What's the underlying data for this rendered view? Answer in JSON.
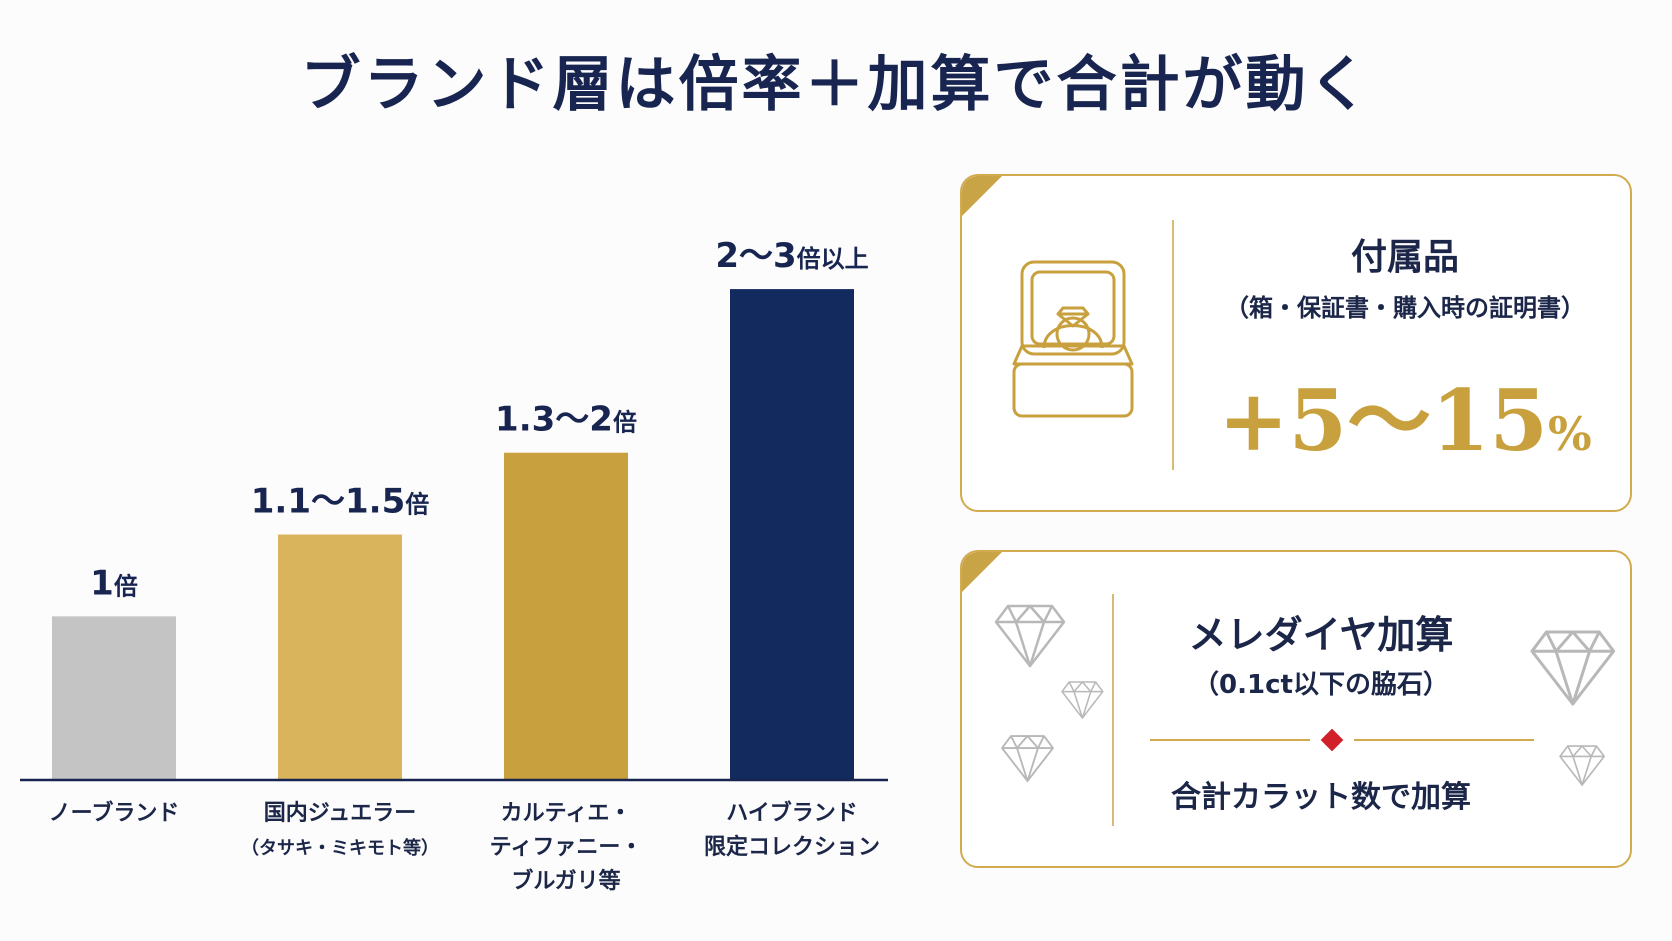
{
  "title": "ブランド層は倍率＋加算で合計が動く",
  "chart_data": {
    "type": "bar",
    "categories": [
      "ノーブランド",
      "国内ジュエラー",
      "カルティエ・ティファニー・ブルガリ等",
      "ハイブランド限定コレクション"
    ],
    "category_lines": [
      [
        "ノーブランド"
      ],
      [
        "国内ジュエラー"
      ],
      [
        "カルティエ・",
        "ティファニー・",
        "ブルガリ等"
      ],
      [
        "ハイブランド",
        "限定コレクション"
      ]
    ],
    "category_subs": [
      "",
      "（タサキ・ミキモト等）",
      "",
      ""
    ],
    "values": [
      1,
      1.5,
      2,
      3
    ],
    "value_labels": [
      {
        "num": "1",
        "unit": "倍"
      },
      {
        "num": "1.1〜1.5",
        "unit": "倍"
      },
      {
        "num": "1.3〜2",
        "unit": "倍"
      },
      {
        "num": "2〜3",
        "unit": "倍以上"
      }
    ],
    "colors": [
      "#c4c4c4",
      "#d9b45c",
      "#c9a03e",
      "#132a5e"
    ],
    "ylim": [
      0,
      3.3
    ],
    "xlabel": "",
    "ylabel": ""
  },
  "card1": {
    "title": "付属品",
    "subtitle": "（箱・保証書・購入時の証明書）",
    "value_main": "+5〜15",
    "value_unit": "%",
    "icon": "ring-box-icon"
  },
  "card2": {
    "title": "メレダイヤ加算",
    "subtitle": "（0.1ct以下の脇石）",
    "note": "合計カラット数で加算",
    "icon": "diamond-icon"
  },
  "colors": {
    "navy": "#172550",
    "gold": "#c9a03e",
    "accent_red": "#d2202a"
  }
}
